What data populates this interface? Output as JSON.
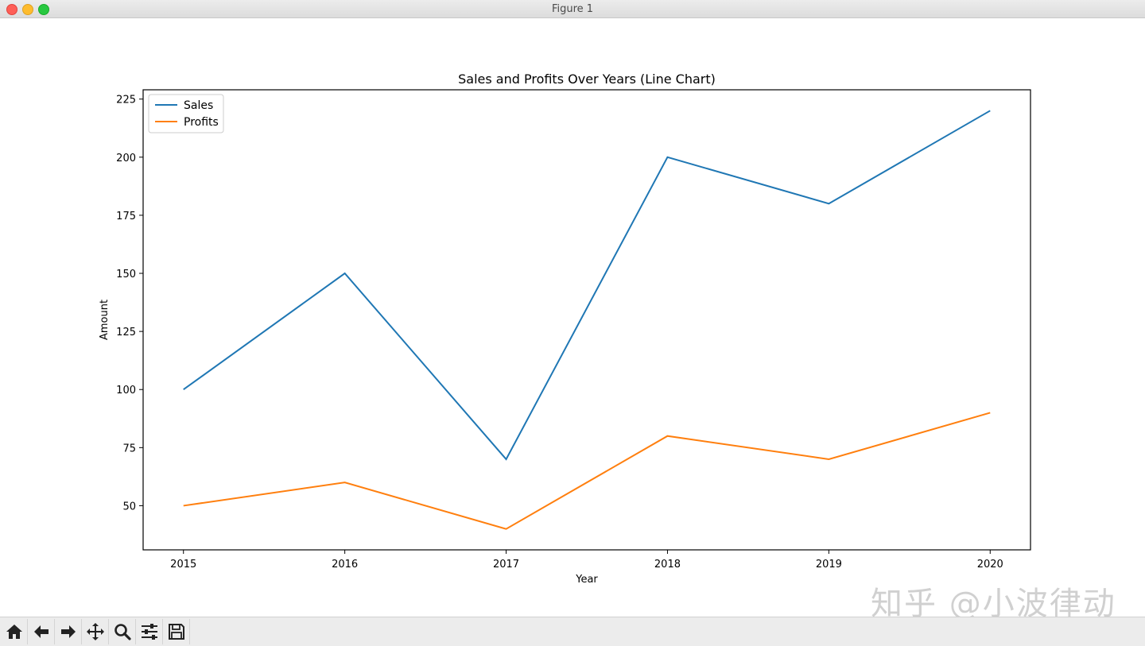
{
  "window": {
    "title": "Figure 1"
  },
  "toolbar": {
    "buttons": [
      {
        "name": "home-icon"
      },
      {
        "name": "back-icon"
      },
      {
        "name": "forward-icon"
      },
      {
        "name": "pan-icon"
      },
      {
        "name": "zoom-icon"
      },
      {
        "name": "configure-subplots-icon"
      },
      {
        "name": "save-icon"
      }
    ]
  },
  "watermark": "知乎 @小波律动",
  "chart_data": {
    "type": "line",
    "title": "Sales and Profits Over Years (Line Chart)",
    "xlabel": "Year",
    "ylabel": "Amount",
    "x": [
      2015,
      2016,
      2017,
      2018,
      2019,
      2020
    ],
    "series": [
      {
        "name": "Sales",
        "values": [
          100,
          150,
          70,
          200,
          180,
          220
        ],
        "color": "#1f77b4"
      },
      {
        "name": "Profits",
        "values": [
          50,
          60,
          40,
          80,
          70,
          90
        ],
        "color": "#ff7f0e"
      }
    ],
    "xlim": [
      2014.75,
      2020.25
    ],
    "ylim": [
      31,
      229
    ],
    "xticks": [
      2015,
      2016,
      2017,
      2018,
      2019,
      2020
    ],
    "yticks": [
      50,
      75,
      100,
      125,
      150,
      175,
      200,
      225
    ],
    "grid": false,
    "legend": "top-left"
  }
}
